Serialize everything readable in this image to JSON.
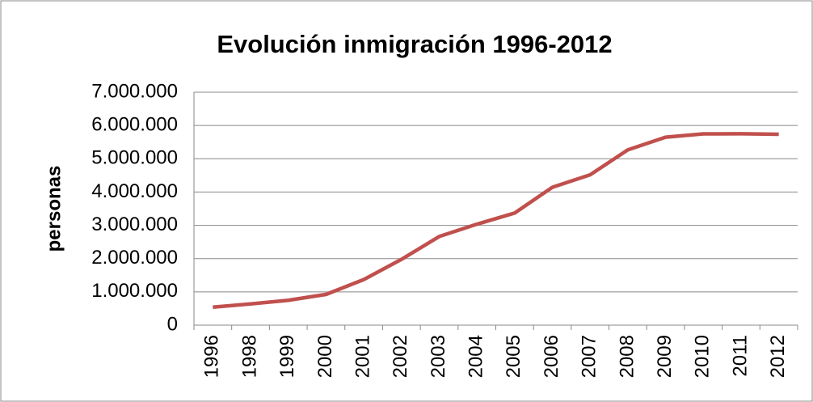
{
  "chart_data": {
    "type": "line",
    "title": "Evolución inmigración 1996-2012",
    "y_label": "personas",
    "categories": [
      "1996",
      "1998",
      "1999",
      "2000",
      "2001",
      "2002",
      "2003",
      "2004",
      "2005",
      "2006",
      "2007",
      "2008",
      "2009",
      "2010",
      "2011",
      "2012"
    ],
    "series": [
      {
        "name": "personas",
        "color": "#c0504d",
        "values": [
          542000,
          637000,
          748000,
          924000,
          1370000,
          1977000,
          2664000,
          3034000,
          3370000,
          4144000,
          4519000,
          5268000,
          5648000,
          5747000,
          5752000,
          5736000
        ]
      }
    ],
    "ylim": [
      0,
      7000000
    ],
    "yticks": [
      0,
      {
        "value": 1000000,
        "label": "1.000.000"
      },
      {
        "value": 2000000,
        "label": "2.000.000"
      },
      {
        "value": 3000000,
        "label": "3.000.000"
      },
      {
        "value": 4000000,
        "label": "4.000.000"
      },
      {
        "value": 5000000,
        "label": "5.000.000"
      },
      {
        "value": 6000000,
        "label": "6.000.000"
      },
      {
        "value": 7000000,
        "label": "7.000.000"
      }
    ],
    "grid": true
  }
}
